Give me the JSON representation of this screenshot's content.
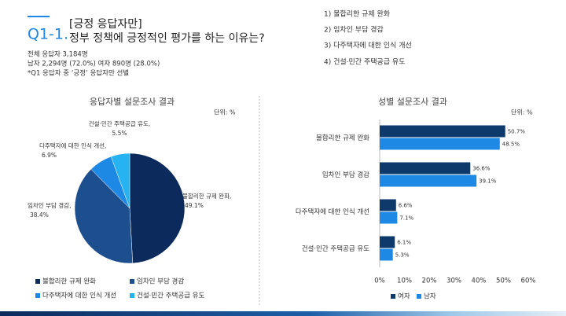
{
  "header": {
    "number": "Q1-1.",
    "title_top": "[긍정 응답자만]",
    "title_bottom": "정부 정책에 긍정적인 평가를 하는 이유는?",
    "notes": [
      "전체 응답자 3,184명",
      "남자 2,294명 (72.0%) 여자 890명 (28.0%)",
      "*Q1 응답자 중 ‘긍정’ 응답자만 선별"
    ],
    "options": [
      "1) 불합리한 규제 완화",
      "2) 임차인 부담 경감",
      "3) 다주택자에 대한 인식 개선",
      "4) 건설·민간 주택공급 유도"
    ]
  },
  "chart_data": [
    {
      "type": "pie",
      "title": "응답자별 설문조사 결과",
      "unit": "단위: %",
      "categories": [
        "불합리한 규제 완화",
        "임차인 부담 경감",
        "다주택자에 대한 인식 개선",
        "건설·민간 주택공급 유도"
      ],
      "data_labels": [
        "불합리한 규제 완화,",
        "임차인 부담 경감,",
        "다주택자에 대한 인식 개선,",
        "건설·민간 주택공급 유도,"
      ],
      "values": [
        49.1,
        38.4,
        6.9,
        5.5
      ],
      "value_labels": [
        "49.1%",
        "38.4%",
        "6.9%",
        "5.5%"
      ],
      "colors": [
        "#0c2a5c",
        "#1d4f8f",
        "#1e88e5",
        "#27b3f2"
      ]
    },
    {
      "type": "hbar",
      "title": "성별 설문조사 결과",
      "unit": "단위: %",
      "categories": [
        "불합리한 규제 완화",
        "임차인 부담 경감",
        "다주택자에 대한 인식 개선",
        "건설·민간 주택공급 유도"
      ],
      "series": [
        {
          "name": "여자",
          "color": "#0d3a6b",
          "values": [
            50.7,
            36.6,
            6.6,
            6.1
          ],
          "value_labels": [
            "50.7%",
            "36.6%",
            "6.6%",
            "6.1%"
          ]
        },
        {
          "name": "남자",
          "color": "#1e88e5",
          "values": [
            48.5,
            39.1,
            7.1,
            5.3
          ],
          "value_labels": [
            "48.5%",
            "39.1%",
            "7.1%",
            "5.3%"
          ]
        }
      ],
      "xlim": [
        0,
        60
      ],
      "xticks": [
        {
          "value": 0,
          "label": "0%"
        },
        {
          "value": 10,
          "label": "10%"
        },
        {
          "value": 20,
          "label": "20%"
        },
        {
          "value": 30,
          "label": "30%"
        },
        {
          "value": 40,
          "label": "40%"
        },
        {
          "value": 50,
          "label": "50%"
        },
        {
          "value": 60,
          "label": "60%"
        }
      ]
    }
  ]
}
